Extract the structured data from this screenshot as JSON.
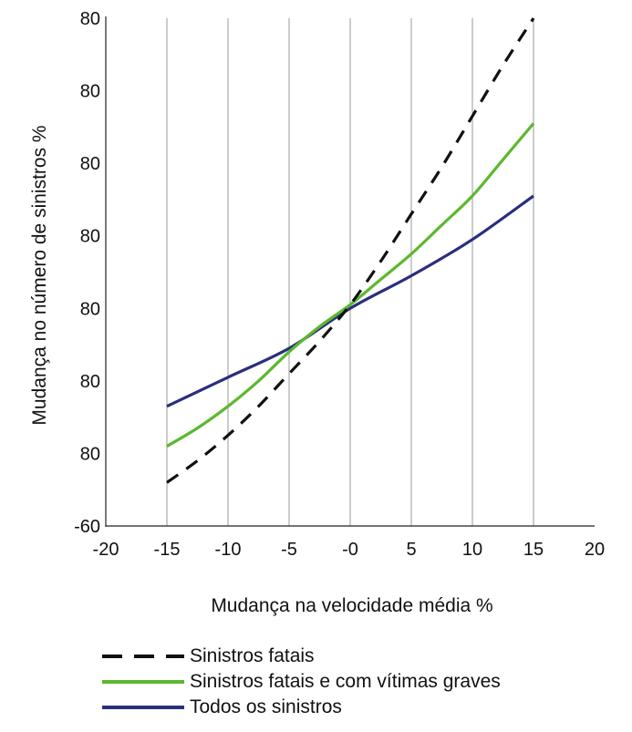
{
  "chart_data": {
    "type": "line",
    "xlabel": "Mudança na velocidade média %",
    "ylabel": "Mudança no número de sinistros %",
    "xlim": [
      -20,
      20
    ],
    "ylim": [
      -60,
      80
    ],
    "x_ticks": [
      "-20",
      "-15",
      "-10",
      "-5",
      "-0",
      "5",
      "10",
      "15",
      "20"
    ],
    "y_ticks": [
      "-60",
      "80",
      "80",
      "80",
      "80",
      "80",
      "80",
      "80"
    ],
    "grid": "vertical",
    "legend_position": "bottom",
    "series": [
      {
        "name": "Sinistros fatais",
        "color": "#111111",
        "style": "dashed",
        "x": [
          -15,
          -12.5,
          -10,
          -7.5,
          -5,
          -2.5,
          0,
          2.5,
          5,
          7.5,
          10,
          12.5,
          15
        ],
        "y": [
          -48,
          -42,
          -35,
          -27,
          -18,
          -9,
          1,
          13,
          26,
          39,
          53,
          67,
          80
        ]
      },
      {
        "name": "Sinistros fatais e com vítimas graves",
        "color": "#5cb82e",
        "style": "solid",
        "x": [
          -15,
          -12.5,
          -10,
          -7.5,
          -5,
          -2.5,
          0,
          2.5,
          5,
          7.5,
          10,
          12.5,
          15
        ],
        "y": [
          -38,
          -33,
          -27,
          -20,
          -12,
          -5,
          1,
          8,
          15,
          23,
          31,
          41,
          51
        ]
      },
      {
        "name": "Todos os sinistros",
        "color": "#2b2e7d",
        "style": "solid",
        "x": [
          -15,
          -10,
          -5,
          0,
          5,
          10,
          15
        ],
        "y": [
          -27,
          -19,
          -11,
          0,
          9,
          19,
          31
        ]
      }
    ]
  }
}
